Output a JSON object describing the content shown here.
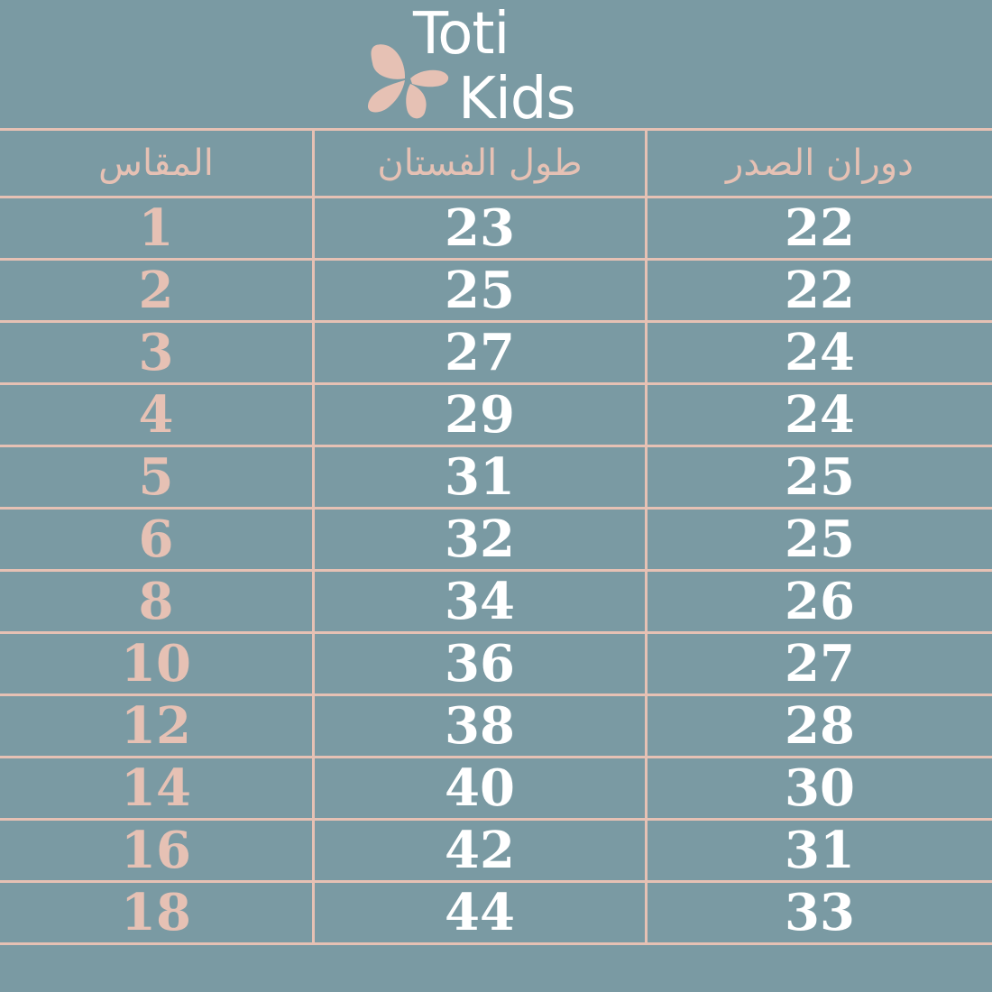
{
  "brand": {
    "line1": "Toti",
    "line2": "Kids",
    "colors": {
      "background": "#7a9aa3",
      "accent": "#e6c1b4",
      "text": "#ffffff"
    }
  },
  "table": {
    "headers": [
      "المقاس",
      "طول الفستان",
      "دوران الصدر"
    ],
    "rows": [
      [
        "1",
        "23",
        "22"
      ],
      [
        "2",
        "25",
        "22"
      ],
      [
        "3",
        "27",
        "24"
      ],
      [
        "4",
        "29",
        "24"
      ],
      [
        "5",
        "31",
        "25"
      ],
      [
        "6",
        "32",
        "25"
      ],
      [
        "8",
        "34",
        "26"
      ],
      [
        "10",
        "36",
        "27"
      ],
      [
        "12",
        "38",
        "28"
      ],
      [
        "14",
        "40",
        "30"
      ],
      [
        "16",
        "42",
        "31"
      ],
      [
        "18",
        "44",
        "33"
      ]
    ]
  }
}
